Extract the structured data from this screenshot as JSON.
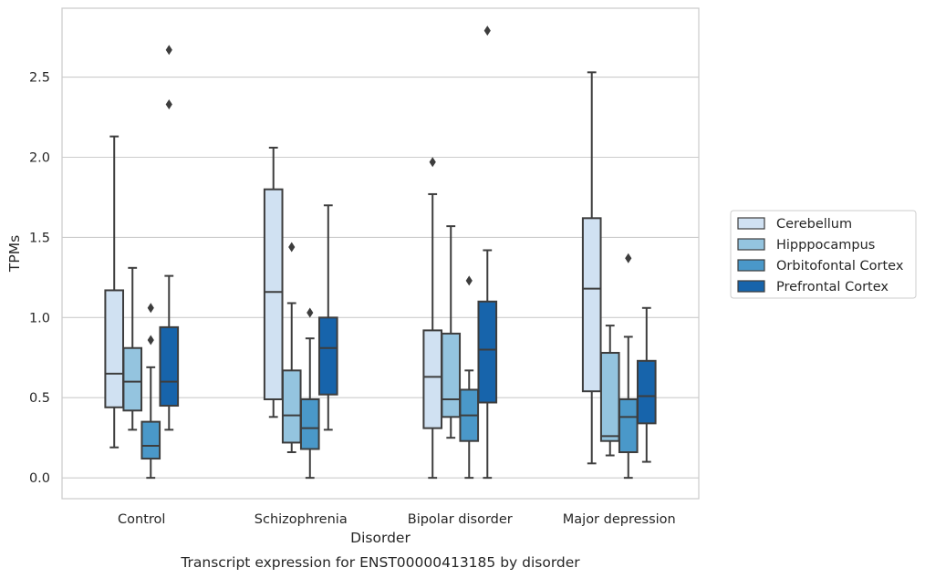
{
  "chart_data": {
    "type": "box",
    "title": "",
    "caption": "Transcript expression for ENST00000413185 by disorder",
    "xlabel": "Disorder",
    "ylabel": "TPMs",
    "ylim": [
      -0.13,
      2.93
    ],
    "yticks": [
      0.0,
      0.5,
      1.0,
      1.5,
      2.0,
      2.5
    ],
    "ytick_labels": [
      "0.0",
      "0.5",
      "1.0",
      "1.5",
      "2.0",
      "2.5"
    ],
    "grid": "horizontal",
    "legend_position": "right",
    "categories": [
      "Control",
      "Schizophrenia",
      "Bipolar disorder",
      "Major depression"
    ],
    "series": [
      {
        "name": "Cerebellum",
        "color": "#d0e1f2",
        "boxes": [
          {
            "whisker_low": 0.19,
            "q1": 0.44,
            "median": 0.65,
            "q3": 1.17,
            "whisker_high": 2.13,
            "outliers": []
          },
          {
            "whisker_low": 0.38,
            "q1": 0.49,
            "median": 1.16,
            "q3": 1.8,
            "whisker_high": 2.06,
            "outliers": []
          },
          {
            "whisker_low": 0.0,
            "q1": 0.31,
            "median": 0.63,
            "q3": 0.92,
            "whisker_high": 1.77,
            "outliers": [
              1.97
            ]
          },
          {
            "whisker_low": 0.09,
            "q1": 0.54,
            "median": 1.18,
            "q3": 1.62,
            "whisker_high": 2.53,
            "outliers": []
          }
        ]
      },
      {
        "name": "Hipppocampus",
        "color": "#94c4df",
        "boxes": [
          {
            "whisker_low": 0.3,
            "q1": 0.42,
            "median": 0.6,
            "q3": 0.81,
            "whisker_high": 1.31,
            "outliers": []
          },
          {
            "whisker_low": 0.16,
            "q1": 0.22,
            "median": 0.39,
            "q3": 0.67,
            "whisker_high": 1.09,
            "outliers": [
              1.44
            ]
          },
          {
            "whisker_low": 0.25,
            "q1": 0.38,
            "median": 0.49,
            "q3": 0.9,
            "whisker_high": 1.57,
            "outliers": []
          },
          {
            "whisker_low": 0.14,
            "q1": 0.23,
            "median": 0.26,
            "q3": 0.78,
            "whisker_high": 0.95,
            "outliers": []
          }
        ]
      },
      {
        "name": "Orbitofontal Cortex",
        "color": "#4a98c9",
        "boxes": [
          {
            "whisker_low": 0.0,
            "q1": 0.12,
            "median": 0.2,
            "q3": 0.35,
            "whisker_high": 0.69,
            "outliers": [
              0.86,
              1.06
            ]
          },
          {
            "whisker_low": 0.0,
            "q1": 0.18,
            "median": 0.31,
            "q3": 0.49,
            "whisker_high": 0.87,
            "outliers": [
              1.03
            ]
          },
          {
            "whisker_low": 0.0,
            "q1": 0.23,
            "median": 0.39,
            "q3": 0.55,
            "whisker_high": 0.67,
            "outliers": [
              1.23
            ]
          },
          {
            "whisker_low": 0.0,
            "q1": 0.16,
            "median": 0.38,
            "q3": 0.49,
            "whisker_high": 0.88,
            "outliers": [
              1.37
            ]
          }
        ]
      },
      {
        "name": "Prefrontal Cortex",
        "color": "#1764ab",
        "boxes": [
          {
            "whisker_low": 0.3,
            "q1": 0.45,
            "median": 0.6,
            "q3": 0.94,
            "whisker_high": 1.26,
            "outliers": [
              2.33,
              2.67
            ]
          },
          {
            "whisker_low": 0.3,
            "q1": 0.52,
            "median": 0.81,
            "q3": 1.0,
            "whisker_high": 1.7,
            "outliers": []
          },
          {
            "whisker_low": 0.0,
            "q1": 0.47,
            "median": 0.8,
            "q3": 1.1,
            "whisker_high": 1.42,
            "outliers": [
              2.79
            ]
          },
          {
            "whisker_low": 0.1,
            "q1": 0.34,
            "median": 0.51,
            "q3": 0.73,
            "whisker_high": 1.06,
            "outliers": []
          }
        ]
      }
    ]
  }
}
